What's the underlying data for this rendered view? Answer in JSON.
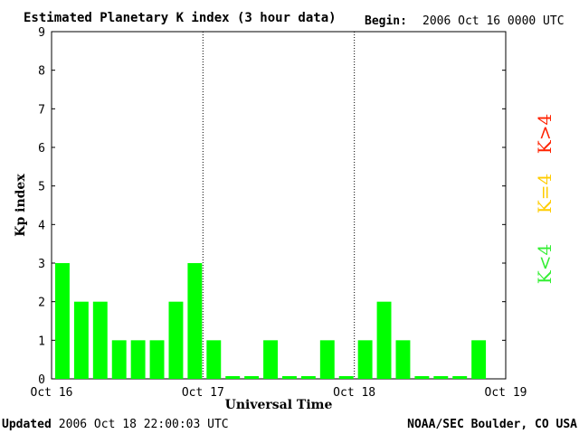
{
  "chart_data": {
    "type": "bar",
    "title": "Estimated Planetary K index (3 hour data)",
    "begin_label": "Begin:",
    "begin_value": "2006 Oct 16 0000 UTC",
    "xlabel": "Universal Time",
    "ylabel": "Kp index",
    "ylim": [
      0,
      9
    ],
    "y_ticks": [
      "0",
      "1",
      "2",
      "3",
      "4",
      "5",
      "6",
      "7",
      "8",
      "9"
    ],
    "x_ticks": [
      "Oct 16",
      "Oct 17",
      "Oct 18",
      "Oct 19"
    ],
    "bars_per_day": 8,
    "values": [
      3,
      2,
      2,
      1,
      1,
      1,
      2,
      3,
      1,
      0,
      0,
      1,
      0,
      0,
      1,
      0,
      1,
      2,
      1,
      0,
      0,
      0,
      1
    ],
    "legend": [
      {
        "label": "K<4",
        "color": "#33ee33"
      },
      {
        "label": "K=4",
        "color": "#ffcc00"
      },
      {
        "label": "K>4",
        "color": "#ff2200"
      }
    ],
    "bar_color": "#00ff00",
    "grid": false
  },
  "footer": {
    "updated_label": "Updated",
    "updated_value": "2006 Oct 18 22:00:03 UTC",
    "credit": "NOAA/SEC Boulder, CO USA"
  }
}
